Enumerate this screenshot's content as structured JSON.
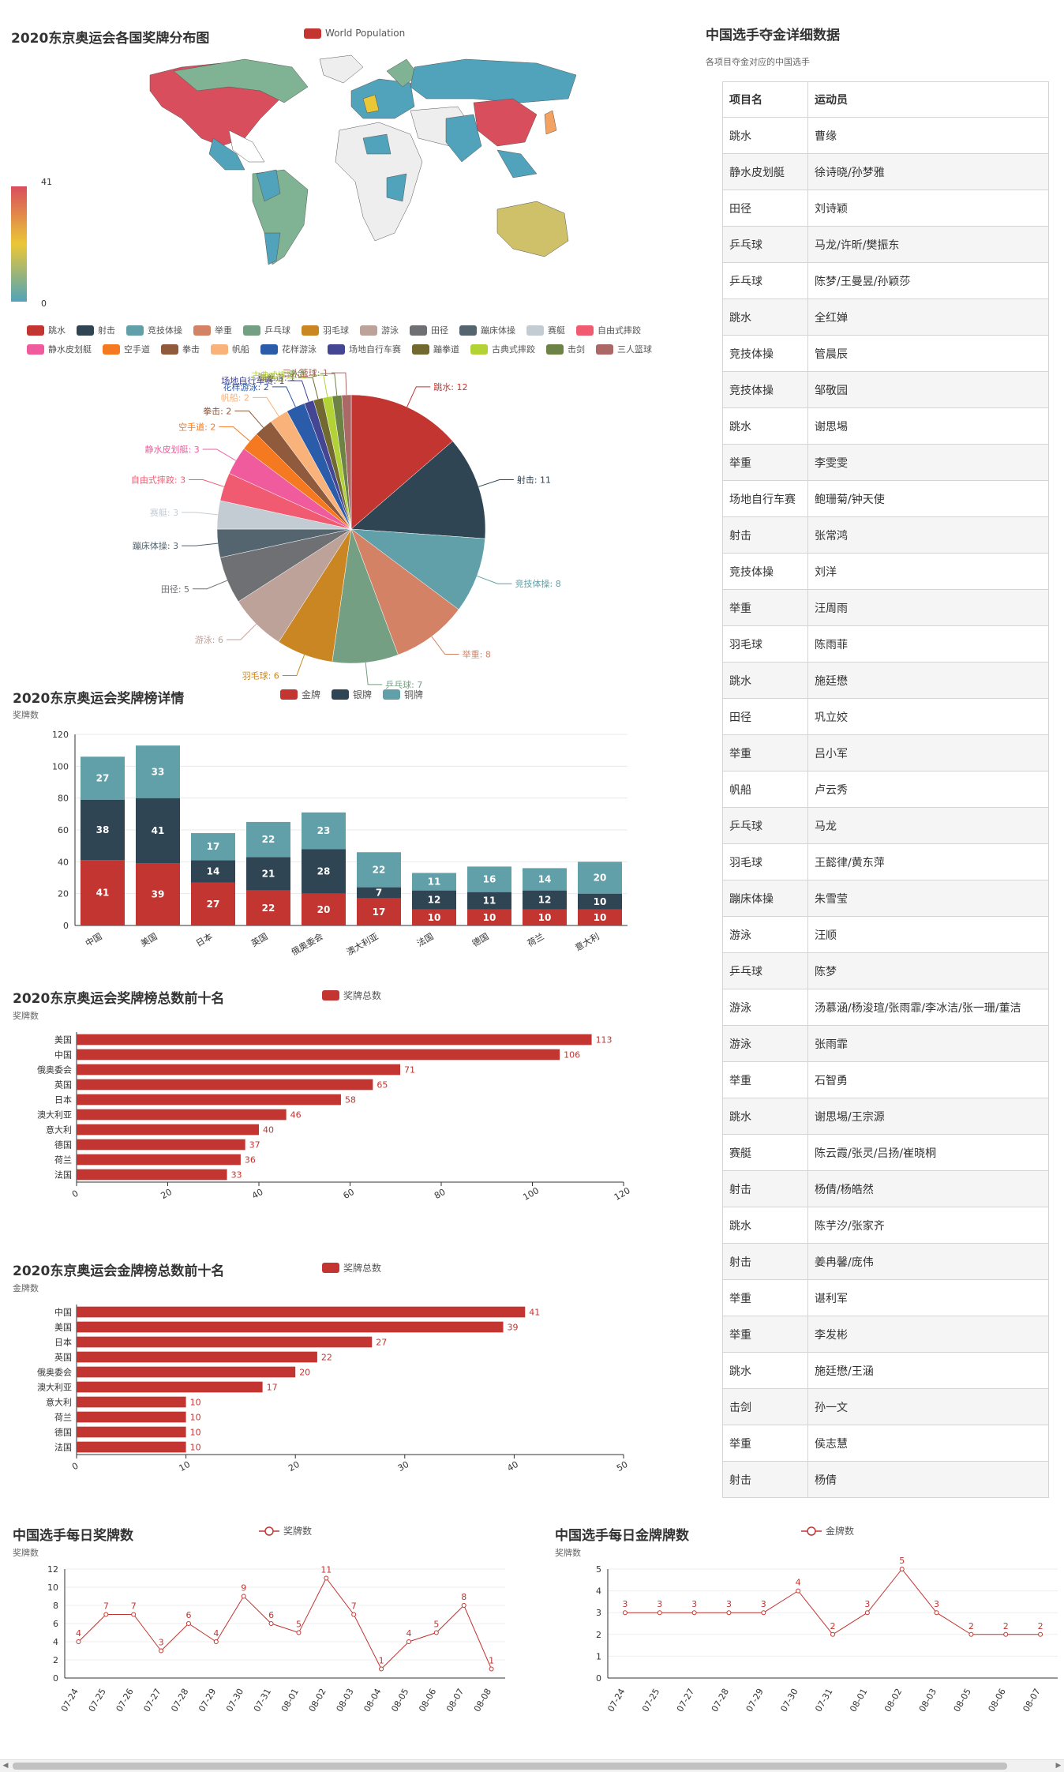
{
  "map": {
    "title": "2020东京奥运会各国奖牌分布图",
    "legend": "World Population",
    "visual_min": "0",
    "visual_max": "41",
    "colors": {
      "high": "#d94e5d",
      "mid": "#eac736",
      "low": "#50a3ba",
      "none": "#eeeeee"
    }
  },
  "pie": {
    "legend": [
      "跳水",
      "射击",
      "竞技体操",
      "举重",
      "乒乓球",
      "羽毛球",
      "游泳",
      "田径",
      "蹦床体操",
      "赛艇",
      "自由式摔跤",
      "静水皮划艇",
      "空手道",
      "拳击",
      "帆船",
      "花样游泳",
      "场地自行车赛",
      "蹦拳道",
      "古典式摔跤",
      "击剑",
      "三人篮球"
    ],
    "labels": [
      "跳水: 12",
      "射击: 11",
      "竞技体操: 8",
      "举重: 8",
      "乒乓球: 7",
      "羽毛球: 6",
      "游泳: 6",
      "田径: 5",
      "蹦床体操: 3",
      "赛艇: 3",
      "自由式摔跤: 3",
      "静水皮划艇: 3",
      "空手道: 2",
      "拳击: 2",
      "帆船: 2",
      "花样游泳: 2",
      "场地自行车赛: 1",
      "蹦拳道: 1",
      "古典式摔跤: 1",
      "击剑: 1",
      "三人篮球: 1"
    ]
  },
  "medal_table": {
    "title": "2020东京奥运会奖牌榜详情",
    "ylabel": "奖牌数",
    "legend": [
      "金牌",
      "银牌",
      "铜牌"
    ]
  },
  "total_rank": {
    "title": "2020东京奥运会奖牌榜总数前十名",
    "ylabel": "奖牌数",
    "legend": "奖牌总数"
  },
  "gold_rank": {
    "title": "2020东京奥运会金牌榜总数前十名",
    "ylabel": "金牌数",
    "legend": "奖牌总数"
  },
  "daily_medals": {
    "title": "中国选手每日奖牌数",
    "ylabel": "奖牌数",
    "legend": "奖牌数"
  },
  "daily_gold": {
    "title": "中国选手每日金牌牌数",
    "ylabel": "奖牌数",
    "legend": "金牌数"
  },
  "gold_table": {
    "title": "中国选手夺金详细数据",
    "subtitle": "各项目夺金对应的中国选手",
    "headers": [
      "项目名",
      "运动员"
    ],
    "rows": [
      [
        "跳水",
        "曹缘"
      ],
      [
        "静水皮划艇",
        "徐诗晓/孙梦雅"
      ],
      [
        "田径",
        "刘诗颖"
      ],
      [
        "乒乓球",
        "马龙/许昕/樊振东"
      ],
      [
        "乒乓球",
        "陈梦/王曼昱/孙颖莎"
      ],
      [
        "跳水",
        "全红婵"
      ],
      [
        "竞技体操",
        "管晨辰"
      ],
      [
        "竞技体操",
        "邹敬园"
      ],
      [
        "跳水",
        "谢思埸"
      ],
      [
        "举重",
        "李雯雯"
      ],
      [
        "场地自行车赛",
        "鲍珊菊/钟天使"
      ],
      [
        "射击",
        "张常鸿"
      ],
      [
        "竞技体操",
        "刘洋"
      ],
      [
        "举重",
        "汪周雨"
      ],
      [
        "羽毛球",
        "陈雨菲"
      ],
      [
        "跳水",
        "施廷懋"
      ],
      [
        "田径",
        "巩立姣"
      ],
      [
        "举重",
        "吕小军"
      ],
      [
        "帆船",
        "卢云秀"
      ],
      [
        "乒乓球",
        "马龙"
      ],
      [
        "羽毛球",
        "王懿律/黄东萍"
      ],
      [
        "蹦床体操",
        "朱雪莹"
      ],
      [
        "游泳",
        "汪顺"
      ],
      [
        "乒乓球",
        "陈梦"
      ],
      [
        "游泳",
        "汤慕涵/杨浚瑄/张雨霏/李冰洁/张一珊/董洁"
      ],
      [
        "游泳",
        "张雨霏"
      ],
      [
        "举重",
        "石智勇"
      ],
      [
        "跳水",
        "谢思埸/王宗源"
      ],
      [
        "赛艇",
        "陈云霞/张灵/吕扬/崔晓桐"
      ],
      [
        "射击",
        "杨倩/杨皓然"
      ],
      [
        "跳水",
        "陈芋汐/张家齐"
      ],
      [
        "射击",
        "姜冉馨/庞伟"
      ],
      [
        "举重",
        "谌利军"
      ],
      [
        "举重",
        "李发彬"
      ],
      [
        "跳水",
        "施廷懋/王涵"
      ],
      [
        "击剑",
        "孙一文"
      ],
      [
        "举重",
        "侯志慧"
      ],
      [
        "射击",
        "杨倩"
      ]
    ]
  },
  "chart_data": [
    {
      "type": "map",
      "title": "2020东京奥运会各国奖牌分布图",
      "legend": [
        "World Population"
      ],
      "range": [
        0,
        41
      ]
    },
    {
      "type": "pie",
      "categories": [
        "跳水",
        "射击",
        "竞技体操",
        "举重",
        "乒乓球",
        "羽毛球",
        "游泳",
        "田径",
        "蹦床体操",
        "赛艇",
        "自由式摔跤",
        "静水皮划艇",
        "空手道",
        "拳击",
        "帆船",
        "花样游泳",
        "场地自行车赛",
        "蹦拳道",
        "古典式摔跤",
        "击剑",
        "三人篮球"
      ],
      "values": [
        12,
        11,
        8,
        8,
        7,
        6,
        6,
        5,
        3,
        3,
        3,
        3,
        2,
        2,
        2,
        2,
        1,
        1,
        1,
        1,
        1
      ],
      "colors": [
        "#c23531",
        "#2f4554",
        "#61a0a8",
        "#d48265",
        "#749f83",
        "#ca8622",
        "#bda29a",
        "#6e7074",
        "#546570",
        "#c4ccd3",
        "#f05b72",
        "#ef5b9c",
        "#f47920",
        "#905a3d",
        "#fab27b",
        "#2a5caa",
        "#444693",
        "#726930",
        "#b2d235",
        "#6d8346",
        "#ac6767"
      ]
    },
    {
      "type": "bar",
      "stacked": true,
      "title": "2020东京奥运会奖牌榜详情",
      "ylabel": "奖牌数",
      "ylim": [
        0,
        120
      ],
      "categories": [
        "中国",
        "美国",
        "日本",
        "英国",
        "俄奥委会",
        "澳大利亚",
        "法国",
        "德国",
        "荷兰",
        "意大利"
      ],
      "series": [
        {
          "name": "金牌",
          "values": [
            41,
            39,
            27,
            22,
            20,
            17,
            10,
            10,
            10,
            10
          ],
          "color": "#c23531"
        },
        {
          "name": "银牌",
          "values": [
            38,
            41,
            14,
            21,
            28,
            7,
            12,
            11,
            12,
            10
          ],
          "color": "#2f4554"
        },
        {
          "name": "铜牌",
          "values": [
            27,
            33,
            17,
            22,
            23,
            22,
            11,
            16,
            14,
            20
          ],
          "color": "#61a0a8"
        }
      ]
    },
    {
      "type": "bar",
      "orientation": "horizontal",
      "title": "2020东京奥运会奖牌榜总数前十名",
      "ylabel": "奖牌数",
      "xlim": [
        0,
        120
      ],
      "categories": [
        "美国",
        "中国",
        "俄奥委会",
        "英国",
        "日本",
        "澳大利亚",
        "意大利",
        "德国",
        "荷兰",
        "法国"
      ],
      "values": [
        113,
        106,
        71,
        65,
        58,
        46,
        40,
        37,
        36,
        33
      ],
      "legend": [
        "奖牌总数"
      ]
    },
    {
      "type": "bar",
      "orientation": "horizontal",
      "title": "2020东京奥运会金牌榜总数前十名",
      "ylabel": "金牌数",
      "xlim": [
        0,
        50
      ],
      "categories": [
        "中国",
        "美国",
        "日本",
        "英国",
        "俄奥委会",
        "澳大利亚",
        "意大利",
        "荷兰",
        "德国",
        "法国"
      ],
      "values": [
        41,
        39,
        27,
        22,
        20,
        17,
        10,
        10,
        10,
        10
      ],
      "legend": [
        "奖牌总数"
      ]
    },
    {
      "type": "line",
      "title": "中国选手每日奖牌数",
      "ylabel": "奖牌数",
      "ylim": [
        0,
        12
      ],
      "x": [
        "07-24",
        "07-25",
        "07-26",
        "07-27",
        "07-28",
        "07-29",
        "07-30",
        "07-31",
        "08-01",
        "08-02",
        "08-03",
        "08-04",
        "08-05",
        "08-06",
        "08-07",
        "08-08"
      ],
      "values": [
        4,
        7,
        7,
        3,
        6,
        4,
        9,
        6,
        5,
        11,
        7,
        1,
        4,
        5,
        8,
        1
      ],
      "legend": [
        "奖牌数"
      ]
    },
    {
      "type": "line",
      "title": "中国选手每日金牌牌数",
      "ylabel": "奖牌数",
      "ylim": [
        0,
        5
      ],
      "x": [
        "07-24",
        "07-25",
        "07-27",
        "07-28",
        "07-29",
        "07-30",
        "07-31",
        "08-01",
        "08-02",
        "08-03",
        "08-05",
        "08-06",
        "08-07"
      ],
      "values": [
        3,
        3,
        3,
        3,
        3,
        4,
        2,
        3,
        5,
        3,
        2,
        2,
        2
      ],
      "legend": [
        "金牌数"
      ]
    }
  ]
}
